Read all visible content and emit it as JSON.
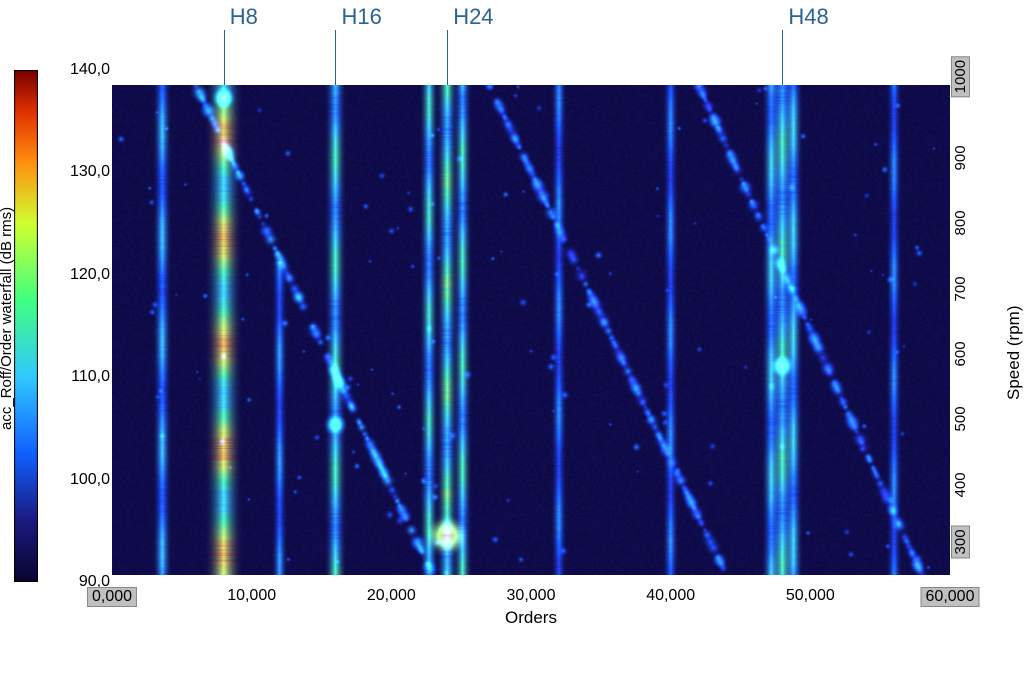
{
  "chart": {
    "type": "waterfall-spectrogram",
    "background_color": "#ffffff",
    "plot_background": "#140c3c",
    "colorbar": {
      "label": "acc_Roff/Order waterfall (dB rms)",
      "label_fontsize": 15,
      "min": 90.0,
      "max": 140.0,
      "stops": [
        {
          "t": 0.0,
          "color": "#0a0430"
        },
        {
          "t": 0.12,
          "color": "#1a1a80"
        },
        {
          "t": 0.25,
          "color": "#1060ff"
        },
        {
          "t": 0.4,
          "color": "#30c8ff"
        },
        {
          "t": 0.55,
          "color": "#40ff80"
        },
        {
          "t": 0.7,
          "color": "#d0ff30"
        },
        {
          "t": 0.82,
          "color": "#ff9010"
        },
        {
          "t": 0.92,
          "color": "#e03000"
        },
        {
          "t": 1.0,
          "color": "#7a0000"
        }
      ]
    },
    "xaxis": {
      "label": "Orders",
      "min": 0.0,
      "max": 60.0,
      "tick_positions": [
        0.0,
        10.0,
        20.0,
        30.0,
        40.0,
        50.0,
        60.0
      ],
      "tick_labels": [
        "0,000",
        "10,000",
        "20,000",
        "30,000",
        "40,000",
        "50,000",
        "60,000"
      ],
      "boxed_ticks": [
        "0,000",
        "60,000"
      ],
      "label_fontsize": 17,
      "tick_fontsize": 16
    },
    "yaxis_left": {
      "min": 90.0,
      "max": 140.0,
      "tick_positions": [
        90.0,
        100.0,
        110.0,
        120.0,
        130.0,
        140.0
      ],
      "tick_labels": [
        "90,0",
        "100,0",
        "110,0",
        "120,0",
        "130,0",
        "140,0"
      ],
      "tick_fontsize": 16
    },
    "yaxis_right": {
      "label": "Speed (rpm)",
      "min": 300,
      "max": 1050,
      "tick_positions": [
        300,
        400,
        500,
        600,
        700,
        800,
        900,
        1000
      ],
      "tick_labels": [
        "300",
        "400",
        "500",
        "600",
        "700",
        "800",
        "900",
        "1000"
      ],
      "boxed_ticks": [
        "300",
        "1000"
      ],
      "label_fontsize": 17,
      "tick_fontsize": 15
    },
    "annotations": [
      {
        "label": "H8",
        "order": 8.0,
        "color": "#2a6496",
        "fontsize": 22
      },
      {
        "label": "H16",
        "order": 16.0,
        "color": "#2a6496",
        "fontsize": 22
      },
      {
        "label": "H24",
        "order": 24.0,
        "color": "#2a6496",
        "fontsize": 22
      },
      {
        "label": "H48",
        "order": 48.0,
        "color": "#2a6496",
        "fontsize": 22
      }
    ],
    "order_lines": [
      {
        "order": 3.6,
        "intensity": 0.38,
        "width": 6,
        "from_speed": 300,
        "to_speed": 1050
      },
      {
        "order": 8.0,
        "intensity": 0.72,
        "width": 12,
        "from_speed": 300,
        "to_speed": 1050
      },
      {
        "order": 12.0,
        "intensity": 0.32,
        "width": 5,
        "from_speed": 300,
        "to_speed": 780
      },
      {
        "order": 16.0,
        "intensity": 0.5,
        "width": 7,
        "from_speed": 300,
        "to_speed": 1050
      },
      {
        "order": 22.7,
        "intensity": 0.48,
        "width": 6,
        "from_speed": 300,
        "to_speed": 1050
      },
      {
        "order": 24.0,
        "intensity": 0.55,
        "width": 7,
        "from_speed": 300,
        "to_speed": 1050
      },
      {
        "order": 25.1,
        "intensity": 0.5,
        "width": 6,
        "from_speed": 300,
        "to_speed": 1050
      },
      {
        "order": 32.0,
        "intensity": 0.3,
        "width": 5,
        "from_speed": 300,
        "to_speed": 1050
      },
      {
        "order": 40.0,
        "intensity": 0.3,
        "width": 5,
        "from_speed": 300,
        "to_speed": 1050
      },
      {
        "order": 47.2,
        "intensity": 0.42,
        "width": 6,
        "from_speed": 300,
        "to_speed": 1050
      },
      {
        "order": 48.0,
        "intensity": 0.5,
        "width": 8,
        "from_speed": 300,
        "to_speed": 1050
      },
      {
        "order": 48.8,
        "intensity": 0.42,
        "width": 6,
        "from_speed": 300,
        "to_speed": 1050
      },
      {
        "order": 56.0,
        "intensity": 0.3,
        "width": 5,
        "from_speed": 300,
        "to_speed": 1050
      }
    ],
    "resonance_diagonals": [
      {
        "order_at_lowrpm": 23.0,
        "order_at_highrpm": 6.0,
        "intensity": 0.3,
        "width": 10
      },
      {
        "order_at_lowrpm": 44.0,
        "order_at_highrpm": 27.0,
        "intensity": 0.25,
        "width": 10
      },
      {
        "order_at_lowrpm": 58.0,
        "order_at_highrpm": 42.0,
        "intensity": 0.25,
        "width": 10
      }
    ],
    "hotspots": [
      {
        "order": 24.0,
        "speed": 360,
        "intensity": 0.95,
        "radius": 14
      },
      {
        "order": 16.0,
        "speed": 530,
        "intensity": 0.55,
        "radius": 8
      },
      {
        "order": 48.0,
        "speed": 620,
        "intensity": 0.55,
        "radius": 8
      },
      {
        "order": 8.0,
        "speed": 1030,
        "intensity": 0.6,
        "radius": 8
      }
    ],
    "speckles": {
      "count": 140,
      "min_intensity": 0.16,
      "max_intensity": 0.3,
      "seed": 12345
    }
  }
}
